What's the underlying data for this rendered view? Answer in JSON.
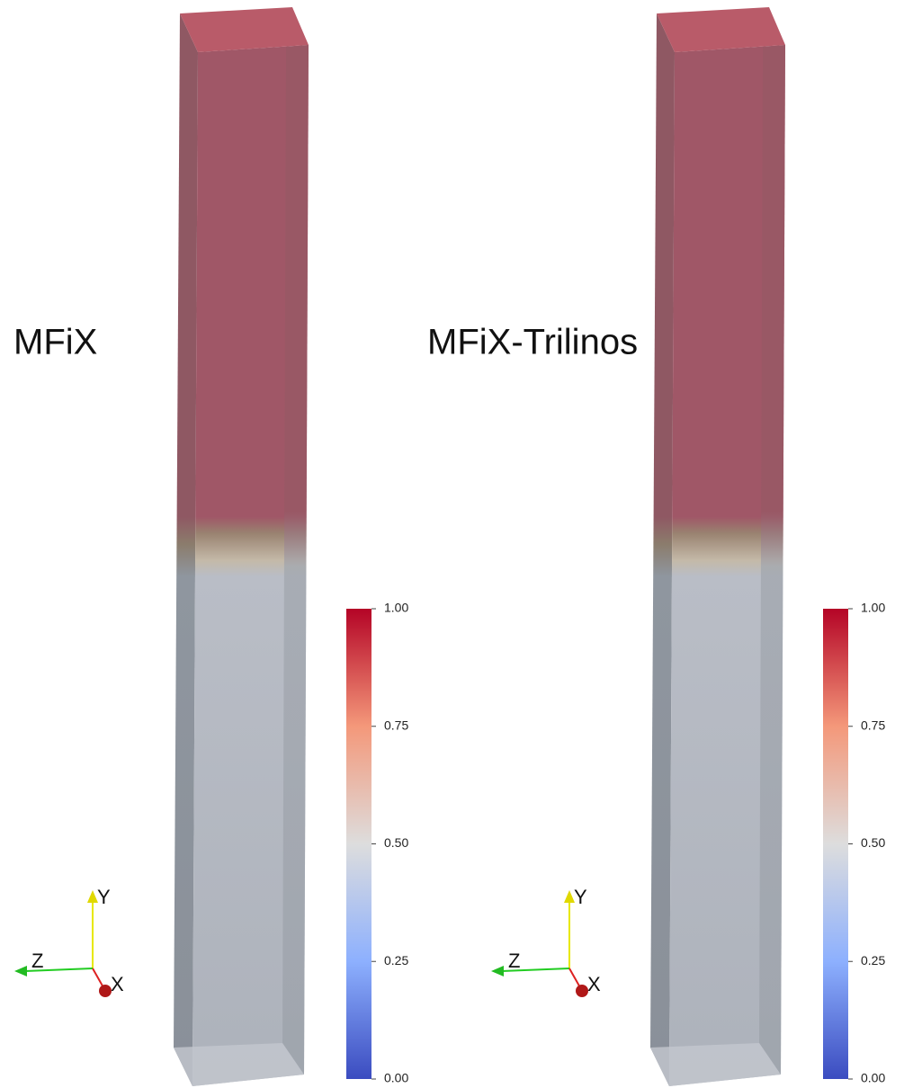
{
  "panels": [
    {
      "label": "MFiX",
      "colorbar": {
        "ticks": [
          {
            "value": 1,
            "label": "1.00"
          },
          {
            "value": 0.75,
            "label": "0.75"
          },
          {
            "value": 0.5,
            "label": "0.50"
          },
          {
            "value": 0.25,
            "label": "0.25"
          },
          {
            "value": 0,
            "label": "0.00"
          }
        ]
      },
      "axes": {
        "y": "Y",
        "z": "Z",
        "x": "X"
      }
    },
    {
      "label": "MFiX-Trilinos",
      "colorbar": {
        "ticks": [
          {
            "value": 1,
            "label": "1.00"
          },
          {
            "value": 0.75,
            "label": "0.75"
          },
          {
            "value": 0.5,
            "label": "0.50"
          },
          {
            "value": 0.25,
            "label": "0.25"
          },
          {
            "value": 0,
            "label": "0.00"
          }
        ]
      },
      "axes": {
        "y": "Y",
        "z": "Z",
        "x": "X"
      }
    }
  ]
}
